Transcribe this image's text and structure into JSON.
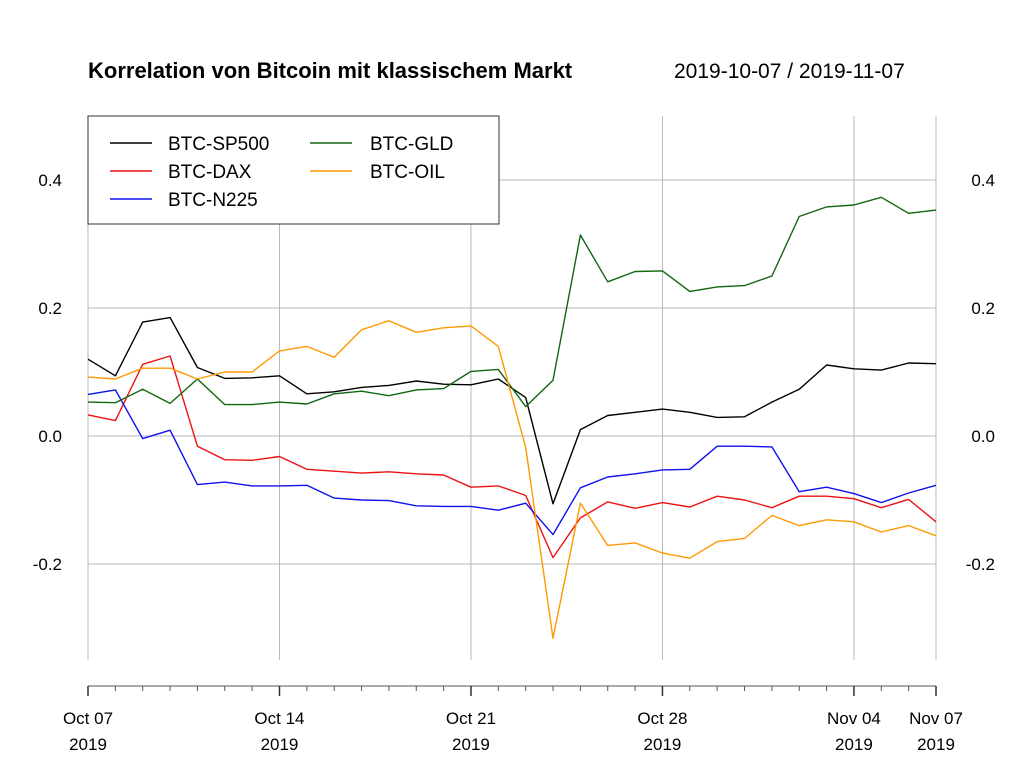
{
  "chart_data": {
    "type": "line",
    "title": "Korrelation von Bitcoin mit klassischem Markt",
    "subtitle": "2019-10-07 / 2019-11-07",
    "x": [
      "2019-10-07",
      "2019-10-08",
      "2019-10-09",
      "2019-10-10",
      "2019-10-11",
      "2019-10-12",
      "2019-10-13",
      "2019-10-14",
      "2019-10-15",
      "2019-10-16",
      "2019-10-17",
      "2019-10-18",
      "2019-10-19",
      "2019-10-20",
      "2019-10-21",
      "2019-10-22",
      "2019-10-23",
      "2019-10-24",
      "2019-10-25",
      "2019-10-26",
      "2019-10-27",
      "2019-10-28",
      "2019-10-29",
      "2019-10-30",
      "2019-10-31",
      "2019-11-01",
      "2019-11-02",
      "2019-11-03",
      "2019-11-04",
      "2019-11-05",
      "2019-11-06",
      "2019-11-07"
    ],
    "x_ticks": [
      {
        "date": "2019-10-07",
        "label1": "Oct 07",
        "label2": "2019"
      },
      {
        "date": "2019-10-14",
        "label1": "Oct 14",
        "label2": "2019"
      },
      {
        "date": "2019-10-21",
        "label1": "Oct 21",
        "label2": "2019"
      },
      {
        "date": "2019-10-28",
        "label1": "Oct 28",
        "label2": "2019"
      },
      {
        "date": "2019-11-04",
        "label1": "Nov 04",
        "label2": "2019"
      },
      {
        "date": "2019-11-07",
        "label1": "Nov 07",
        "label2": "2019"
      }
    ],
    "y_ticks": [
      0.4,
      0.2,
      0.0,
      -0.2
    ],
    "y_tick_labels": [
      "0.4",
      "0.2",
      "0.0",
      "-0.2"
    ],
    "ylim": [
      -0.35,
      0.5
    ],
    "grid": true,
    "legend_position": "top-left",
    "series": [
      {
        "name": "BTC-SP500",
        "color": "#000000",
        "values": [
          0.12,
          0.094,
          0.178,
          0.185,
          0.107,
          0.09,
          0.091,
          0.094,
          0.066,
          0.069,
          0.076,
          0.079,
          0.086,
          0.081,
          0.08,
          0.089,
          0.06,
          -0.106,
          0.01,
          0.032,
          0.037,
          0.042,
          0.037,
          0.029,
          0.03,
          0.053,
          0.073,
          0.111,
          0.105,
          0.103,
          0.114,
          0.113
        ]
      },
      {
        "name": "BTC-DAX",
        "color": "#ee1111",
        "values": [
          0.033,
          0.024,
          0.112,
          0.125,
          -0.016,
          -0.037,
          -0.038,
          -0.032,
          -0.052,
          -0.055,
          -0.058,
          -0.056,
          -0.059,
          -0.061,
          -0.08,
          -0.078,
          -0.093,
          -0.19,
          -0.128,
          -0.103,
          -0.113,
          -0.104,
          -0.111,
          -0.094,
          -0.1,
          -0.112,
          -0.094,
          -0.094,
          -0.098,
          -0.112,
          -0.099,
          -0.134
        ]
      },
      {
        "name": "BTC-N225",
        "color": "#1111ee",
        "values": [
          0.065,
          0.072,
          -0.004,
          0.009,
          -0.076,
          -0.072,
          -0.078,
          -0.078,
          -0.077,
          -0.097,
          -0.1,
          -0.101,
          -0.109,
          -0.11,
          -0.11,
          -0.116,
          -0.105,
          -0.154,
          -0.081,
          -0.064,
          -0.059,
          -0.053,
          -0.052,
          -0.016,
          -0.016,
          -0.017,
          -0.087,
          -0.08,
          -0.09,
          -0.104,
          -0.089,
          -0.077
        ]
      },
      {
        "name": "BTC-GLD",
        "color": "#116611",
        "values": [
          0.053,
          0.052,
          0.073,
          0.051,
          0.089,
          0.049,
          0.049,
          0.053,
          0.05,
          0.066,
          0.07,
          0.063,
          0.072,
          0.074,
          0.101,
          0.104,
          0.046,
          0.087,
          0.314,
          0.241,
          0.257,
          0.258,
          0.226,
          0.233,
          0.235,
          0.25,
          0.343,
          0.358,
          0.361,
          0.373,
          0.348,
          0.353
        ]
      },
      {
        "name": "BTC-OIL",
        "color": "#ff9900",
        "values": [
          0.092,
          0.089,
          0.106,
          0.106,
          0.089,
          0.1,
          0.1,
          0.133,
          0.14,
          0.123,
          0.166,
          0.18,
          0.162,
          0.169,
          0.172,
          0.14,
          -0.018,
          -0.316,
          -0.105,
          -0.171,
          -0.167,
          -0.183,
          -0.191,
          -0.165,
          -0.16,
          -0.124,
          -0.14,
          -0.131,
          -0.134,
          -0.15,
          -0.14,
          -0.156
        ]
      }
    ]
  }
}
